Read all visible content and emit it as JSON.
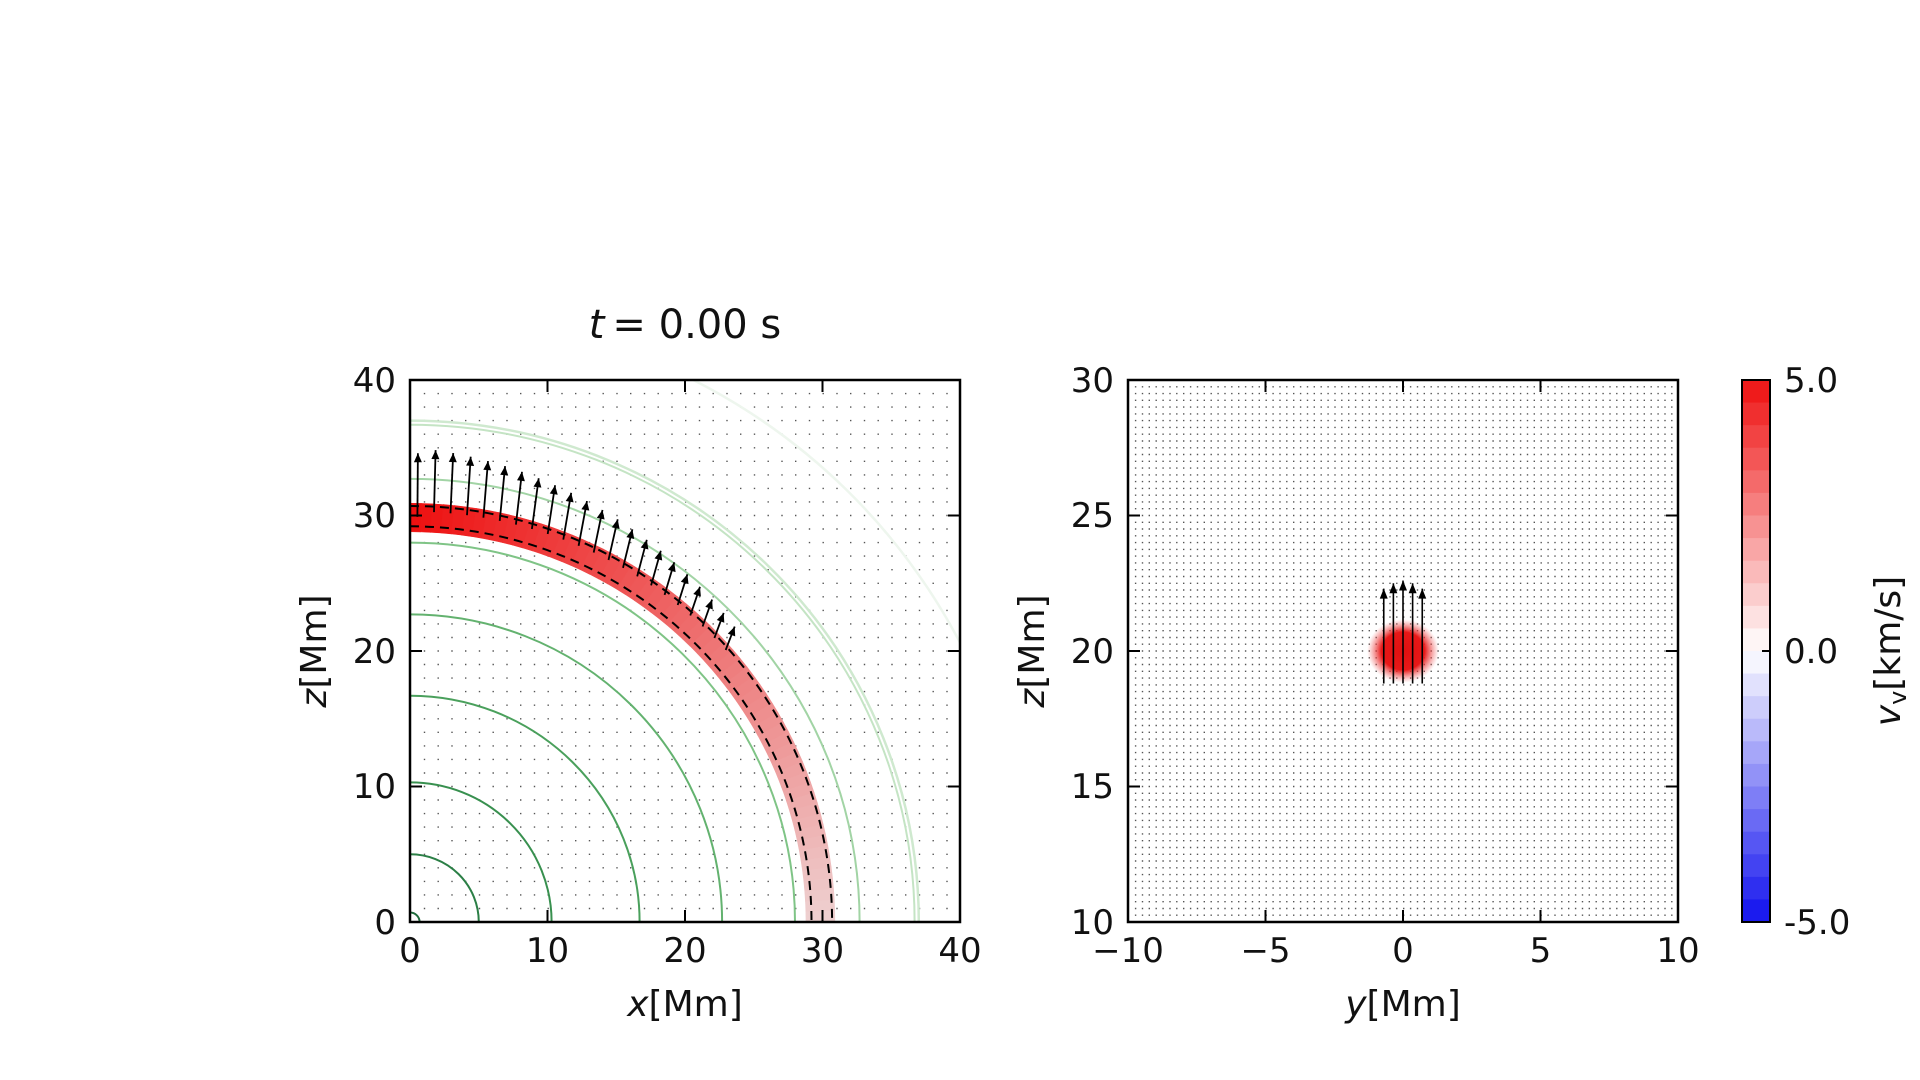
{
  "figure": {
    "title_var": "t",
    "title_rest": "= 0.00 s"
  },
  "chart_data": [
    {
      "type": "heatmap",
      "panel": "left",
      "xlabel_var": "x",
      "xlabel_unit": "[Mm]",
      "ylabel_var": "z",
      "ylabel_unit": "[Mm]",
      "xlim": [
        0,
        40
      ],
      "ylim": [
        0,
        40
      ],
      "xticks": [
        "0",
        "10",
        "20",
        "30",
        "40"
      ],
      "yticks": [
        "0",
        "10",
        "20",
        "30",
        "40"
      ],
      "grid": false,
      "field_line_radii": [
        30,
        37,
        45
      ],
      "field_line_colors": [
        "#a9d9a9",
        "#cfe9cf",
        "#eef6ee"
      ],
      "contour_radii": [
        0.7,
        5,
        10.3,
        16.7,
        22.7,
        28,
        32.7,
        36.7
      ],
      "contour_colors": [
        "#1f6b3c",
        "#2b7f46",
        "#38904f",
        "#4aa05c",
        "#63b26f",
        "#7fc486",
        "#a2d4a5",
        "#c4e4c4"
      ],
      "loop": {
        "r_inner": 28.8,
        "r_outer": 30.9,
        "z_top": 20.5,
        "z_bottom": 19.2
      },
      "dashed_radii": [
        29.2,
        30.7
      ],
      "arrows": {
        "count": 22,
        "start_angle_deg": 89,
        "end_angle_deg": 42,
        "max_len_mm": 3.9,
        "min_len_mm": 1.6
      }
    },
    {
      "type": "heatmap",
      "panel": "right",
      "xlabel_var": "y",
      "xlabel_unit": "[Mm]",
      "ylabel_var": "z",
      "ylabel_unit": "[Mm]",
      "xlim": [
        -10,
        10
      ],
      "ylim": [
        10,
        30
      ],
      "xticks": [
        "−10",
        "−5",
        "0",
        "5",
        "10"
      ],
      "yticks": [
        "10",
        "15",
        "20",
        "25",
        "30"
      ],
      "grid": false,
      "blob": {
        "y": 0,
        "z": 20,
        "radius": 0.9
      },
      "arrows": {
        "y": [
          -0.7,
          -0.35,
          0,
          0.35,
          0.7
        ],
        "z_base": 20,
        "lengths": [
          2.3,
          2.5,
          2.6,
          2.5,
          2.3
        ]
      }
    }
  ],
  "colorbar": {
    "label_var": "v",
    "label_sub": "v",
    "label_unit": "[km/s]",
    "ticks": [
      "5.0",
      "0.0",
      "-5.0"
    ],
    "vmin": -5.0,
    "vmax": 5.0,
    "max_color": "#ee1111",
    "mid_color": "#ffffff",
    "min_color": "#1111ee"
  }
}
